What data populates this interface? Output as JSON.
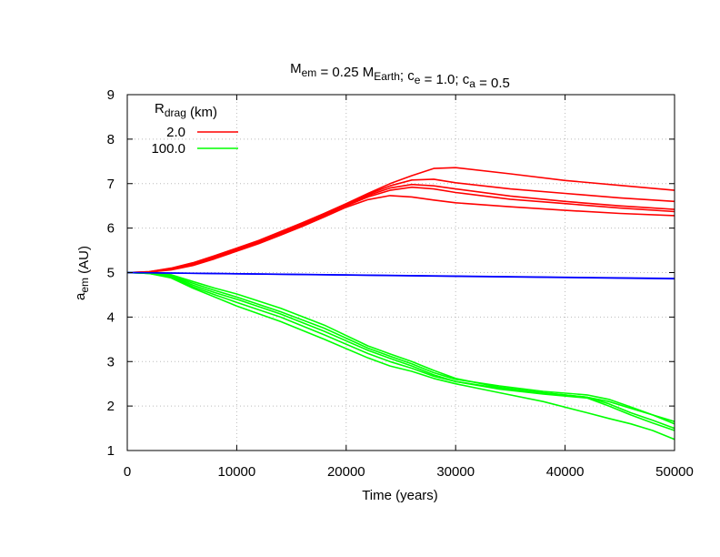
{
  "chart_data": {
    "type": "line",
    "title": {
      "parts": [
        {
          "text": "M",
          "sub": "em"
        },
        {
          "text": " = 0.25 M",
          "sub": "Earth"
        },
        {
          "text": "; c",
          "sub": "e"
        },
        {
          "text": " = 1.0; c",
          "sub": "a"
        },
        {
          "text": " = 0.5",
          "sub": ""
        }
      ]
    },
    "xlabel": "Time (years)",
    "ylabel": {
      "main": "a",
      "sub": "em",
      "rest": " (AU)"
    },
    "xlim": [
      0,
      50000
    ],
    "ylim": [
      1,
      9
    ],
    "xticks": [
      0,
      10000,
      20000,
      30000,
      40000,
      50000
    ],
    "yticks": [
      1,
      2,
      3,
      4,
      5,
      6,
      7,
      8,
      9
    ],
    "grid": true,
    "legend": {
      "placement": "top-left",
      "title": {
        "main": "R",
        "sub": "drag",
        "rest": " (km)"
      },
      "entries": [
        {
          "label": "2.0",
          "color": "#ff0000"
        },
        {
          "label": "100.0",
          "color": "#00ff00"
        }
      ]
    },
    "series": [
      {
        "group": "2.0",
        "color": "#ff0000",
        "x": [
          0,
          2000,
          4000,
          6000,
          8000,
          10000,
          12000,
          14000,
          16000,
          18000,
          20000,
          22000,
          24000,
          26000,
          28000,
          30000,
          35000,
          40000,
          45000,
          50000
        ],
        "y": [
          5.0,
          5.02,
          5.1,
          5.22,
          5.38,
          5.55,
          5.72,
          5.92,
          6.12,
          6.33,
          6.55,
          6.78,
          7.0,
          7.18,
          7.34,
          7.36,
          7.22,
          7.07,
          6.96,
          6.85
        ]
      },
      {
        "group": "2.0",
        "color": "#ff0000",
        "x": [
          0,
          2000,
          4000,
          6000,
          8000,
          10000,
          12000,
          14000,
          16000,
          18000,
          20000,
          22000,
          24000,
          26000,
          28000,
          30000,
          35000,
          40000,
          45000,
          50000
        ],
        "y": [
          5.0,
          5.02,
          5.09,
          5.2,
          5.36,
          5.53,
          5.7,
          5.9,
          6.1,
          6.32,
          6.54,
          6.76,
          6.95,
          7.08,
          7.1,
          7.02,
          6.88,
          6.78,
          6.68,
          6.6
        ]
      },
      {
        "group": "2.0",
        "color": "#ff0000",
        "x": [
          0,
          2000,
          4000,
          6000,
          8000,
          10000,
          12000,
          14000,
          16000,
          18000,
          20000,
          22000,
          24000,
          26000,
          28000,
          30000,
          35000,
          40000,
          45000,
          50000
        ],
        "y": [
          5.0,
          5.01,
          5.08,
          5.19,
          5.35,
          5.52,
          5.68,
          5.88,
          6.08,
          6.3,
          6.52,
          6.73,
          6.9,
          6.98,
          6.95,
          6.88,
          6.72,
          6.6,
          6.5,
          6.42
        ]
      },
      {
        "group": "2.0",
        "color": "#ff0000",
        "x": [
          0,
          2000,
          4000,
          6000,
          8000,
          10000,
          12000,
          14000,
          16000,
          18000,
          20000,
          22000,
          24000,
          26000,
          28000,
          30000,
          35000,
          40000,
          45000,
          50000
        ],
        "y": [
          5.0,
          5.01,
          5.07,
          5.18,
          5.33,
          5.5,
          5.67,
          5.86,
          6.06,
          6.28,
          6.5,
          6.7,
          6.85,
          6.92,
          6.88,
          6.8,
          6.65,
          6.55,
          6.45,
          6.37
        ]
      },
      {
        "group": "2.0",
        "color": "#ff0000",
        "x": [
          0,
          2000,
          4000,
          6000,
          8000,
          10000,
          12000,
          14000,
          16000,
          18000,
          20000,
          22000,
          24000,
          26000,
          28000,
          30000,
          35000,
          40000,
          45000,
          50000
        ],
        "y": [
          5.0,
          5.01,
          5.06,
          5.16,
          5.31,
          5.48,
          5.65,
          5.84,
          6.04,
          6.25,
          6.47,
          6.64,
          6.73,
          6.7,
          6.63,
          6.57,
          6.48,
          6.4,
          6.33,
          6.28
        ]
      },
      {
        "group": "100.0",
        "color": "#00ff00",
        "x": [
          0,
          2000,
          4000,
          6000,
          8000,
          10000,
          14000,
          18000,
          22000,
          24000,
          26000,
          28000,
          30000,
          34000,
          38000,
          42000,
          44000,
          46000,
          48000,
          50000
        ],
        "y": [
          5.0,
          4.99,
          4.95,
          4.8,
          4.65,
          4.52,
          4.2,
          3.82,
          3.35,
          3.17,
          3.0,
          2.8,
          2.62,
          2.42,
          2.3,
          2.2,
          2.1,
          1.95,
          1.8,
          1.65
        ]
      },
      {
        "group": "100.0",
        "color": "#00ff00",
        "x": [
          0,
          2000,
          4000,
          6000,
          8000,
          10000,
          14000,
          18000,
          22000,
          24000,
          26000,
          28000,
          30000,
          34000,
          38000,
          42000,
          44000,
          46000,
          48000,
          50000
        ],
        "y": [
          5.0,
          4.99,
          4.93,
          4.76,
          4.6,
          4.45,
          4.12,
          3.75,
          3.3,
          3.12,
          2.95,
          2.75,
          2.6,
          2.45,
          2.33,
          2.25,
          2.15,
          1.98,
          1.8,
          1.6
        ]
      },
      {
        "group": "100.0",
        "color": "#00ff00",
        "x": [
          0,
          2000,
          4000,
          6000,
          8000,
          10000,
          14000,
          18000,
          22000,
          24000,
          26000,
          28000,
          30000,
          34000,
          38000,
          42000,
          44000,
          46000,
          48000,
          50000
        ],
        "y": [
          5.0,
          4.98,
          4.92,
          4.72,
          4.55,
          4.4,
          4.07,
          3.68,
          3.25,
          3.07,
          2.9,
          2.7,
          2.55,
          2.4,
          2.3,
          2.2,
          2.05,
          1.85,
          1.68,
          1.5
        ]
      },
      {
        "group": "100.0",
        "color": "#00ff00",
        "x": [
          0,
          2000,
          4000,
          6000,
          8000,
          10000,
          14000,
          18000,
          22000,
          24000,
          26000,
          28000,
          30000,
          34000,
          38000,
          42000,
          44000,
          46000,
          48000,
          50000
        ],
        "y": [
          5.0,
          4.98,
          4.9,
          4.68,
          4.5,
          4.33,
          4.0,
          3.6,
          3.18,
          3.0,
          2.85,
          2.67,
          2.55,
          2.38,
          2.27,
          2.18,
          2.0,
          1.8,
          1.62,
          1.45
        ]
      },
      {
        "group": "100.0",
        "color": "#00ff00",
        "x": [
          0,
          2000,
          4000,
          6000,
          8000,
          10000,
          14000,
          18000,
          22000,
          24000,
          26000,
          28000,
          30000,
          34000,
          38000,
          42000,
          44000,
          46000,
          48000,
          50000
        ],
        "y": [
          5.0,
          4.98,
          4.88,
          4.65,
          4.45,
          4.25,
          3.9,
          3.5,
          3.08,
          2.9,
          2.78,
          2.62,
          2.5,
          2.3,
          2.1,
          1.85,
          1.72,
          1.6,
          1.45,
          1.25
        ]
      },
      {
        "group": "",
        "color": "#0000ff",
        "x": [
          0,
          50000
        ],
        "y": [
          5.0,
          4.86
        ]
      },
      {
        "group": "",
        "color": "#0000ff",
        "x": [
          0,
          50000
        ],
        "y": [
          5.0,
          4.87
        ]
      }
    ]
  }
}
